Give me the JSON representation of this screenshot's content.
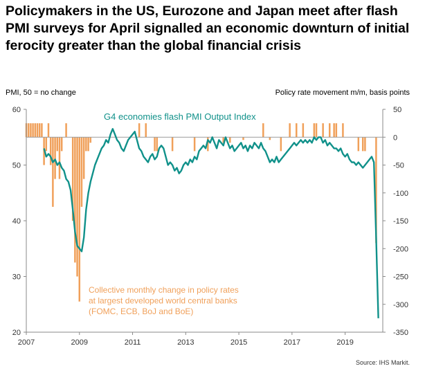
{
  "title": "Policymakers in the US, Eurozone and Japan meet after flash PMI surveys for April signalled an economic downturn of initial ferocity greater than the global financial crisis",
  "left_axis_label": "PMI, 50 = no change",
  "right_axis_label": "Policy rate movement m/m, basis points",
  "source": "Source: IHS Markit.",
  "colors": {
    "pmi_line": "#10918a",
    "rate_bars": "#f0a05a"
  },
  "chart_data": {
    "type": "line",
    "x_ticks": [
      "2007",
      "2009",
      "2011",
      "2013",
      "2015",
      "2017",
      "2019"
    ],
    "x_range": [
      "2007-01",
      "2020-06"
    ],
    "y_left": {
      "label": "PMI, 50 = no change",
      "range": [
        20,
        60
      ],
      "ticks": [
        20,
        30,
        40,
        50,
        60
      ]
    },
    "y_right": {
      "label": "Policy rate movement m/m, basis points",
      "range": [
        -350,
        50
      ],
      "ticks": [
        50,
        0,
        -50,
        -100,
        -150,
        -200,
        -250,
        -300,
        -350
      ]
    },
    "series": [
      {
        "name": "G4 economies flash PMI Output Index",
        "axis": "left",
        "type": "line",
        "points": [
          [
            "2007-09",
            53.0
          ],
          [
            "2007-10",
            51.5
          ],
          [
            "2007-11",
            52.0
          ],
          [
            "2007-12",
            51.5
          ],
          [
            "2008-01",
            50.5
          ],
          [
            "2008-02",
            51.0
          ],
          [
            "2008-03",
            50.0
          ],
          [
            "2008-04",
            50.5
          ],
          [
            "2008-05",
            49.5
          ],
          [
            "2008-06",
            49.0
          ],
          [
            "2008-07",
            47.5
          ],
          [
            "2008-08",
            47.0
          ],
          [
            "2008-09",
            45.5
          ],
          [
            "2008-10",
            42.0
          ],
          [
            "2008-11",
            38.0
          ],
          [
            "2008-12",
            35.5
          ],
          [
            "2009-01",
            35.0
          ],
          [
            "2009-02",
            34.5
          ],
          [
            "2009-03",
            37.0
          ],
          [
            "2009-04",
            42.0
          ],
          [
            "2009-05",
            45.0
          ],
          [
            "2009-06",
            47.0
          ],
          [
            "2009-07",
            48.5
          ],
          [
            "2009-08",
            50.0
          ],
          [
            "2009-09",
            51.0
          ],
          [
            "2009-10",
            52.0
          ],
          [
            "2009-11",
            53.0
          ],
          [
            "2009-12",
            53.5
          ],
          [
            "2010-01",
            54.5
          ],
          [
            "2010-02",
            54.0
          ],
          [
            "2010-03",
            55.5
          ],
          [
            "2010-04",
            56.5
          ],
          [
            "2010-05",
            55.5
          ],
          [
            "2010-06",
            54.5
          ],
          [
            "2010-07",
            54.0
          ],
          [
            "2010-08",
            53.0
          ],
          [
            "2010-09",
            52.5
          ],
          [
            "2010-10",
            53.5
          ],
          [
            "2010-11",
            54.5
          ],
          [
            "2010-12",
            55.0
          ],
          [
            "2011-01",
            55.5
          ],
          [
            "2011-02",
            56.0
          ],
          [
            "2011-03",
            54.5
          ],
          [
            "2011-04",
            53.0
          ],
          [
            "2011-05",
            52.5
          ],
          [
            "2011-06",
            51.5
          ],
          [
            "2011-07",
            51.0
          ],
          [
            "2011-08",
            50.5
          ],
          [
            "2011-09",
            51.5
          ],
          [
            "2011-10",
            52.0
          ],
          [
            "2011-11",
            51.0
          ],
          [
            "2011-12",
            51.5
          ],
          [
            "2012-01",
            53.0
          ],
          [
            "2012-02",
            53.5
          ],
          [
            "2012-03",
            53.0
          ],
          [
            "2012-04",
            51.5
          ],
          [
            "2012-05",
            50.0
          ],
          [
            "2012-06",
            50.5
          ],
          [
            "2012-07",
            50.0
          ],
          [
            "2012-08",
            49.0
          ],
          [
            "2012-09",
            49.5
          ],
          [
            "2012-10",
            48.5
          ],
          [
            "2012-11",
            49.0
          ],
          [
            "2012-12",
            50.0
          ],
          [
            "2013-01",
            50.5
          ],
          [
            "2013-02",
            50.0
          ],
          [
            "2013-03",
            51.0
          ],
          [
            "2013-04",
            50.5
          ],
          [
            "2013-05",
            51.5
          ],
          [
            "2013-06",
            51.0
          ],
          [
            "2013-07",
            52.5
          ],
          [
            "2013-08",
            53.0
          ],
          [
            "2013-09",
            53.5
          ],
          [
            "2013-10",
            53.0
          ],
          [
            "2013-11",
            54.5
          ],
          [
            "2013-12",
            54.0
          ],
          [
            "2014-01",
            55.0
          ],
          [
            "2014-02",
            54.0
          ],
          [
            "2014-03",
            53.0
          ],
          [
            "2014-04",
            54.5
          ],
          [
            "2014-05",
            54.0
          ],
          [
            "2014-06",
            53.5
          ],
          [
            "2014-07",
            55.0
          ],
          [
            "2014-08",
            54.0
          ],
          [
            "2014-09",
            53.0
          ],
          [
            "2014-10",
            53.5
          ],
          [
            "2014-11",
            52.5
          ],
          [
            "2014-12",
            53.0
          ],
          [
            "2015-01",
            53.5
          ],
          [
            "2015-02",
            54.0
          ],
          [
            "2015-03",
            53.0
          ],
          [
            "2015-04",
            53.5
          ],
          [
            "2015-05",
            52.5
          ],
          [
            "2015-06",
            53.5
          ],
          [
            "2015-07",
            53.0
          ],
          [
            "2015-08",
            54.0
          ],
          [
            "2015-09",
            53.5
          ],
          [
            "2015-10",
            53.0
          ],
          [
            "2015-11",
            54.0
          ],
          [
            "2015-12",
            53.0
          ],
          [
            "2016-01",
            52.5
          ],
          [
            "2016-02",
            51.5
          ],
          [
            "2016-03",
            50.5
          ],
          [
            "2016-04",
            51.0
          ],
          [
            "2016-05",
            50.5
          ],
          [
            "2016-06",
            51.5
          ],
          [
            "2016-07",
            50.5
          ],
          [
            "2016-08",
            51.0
          ],
          [
            "2016-09",
            51.5
          ],
          [
            "2016-10",
            52.0
          ],
          [
            "2016-11",
            52.5
          ],
          [
            "2016-12",
            53.0
          ],
          [
            "2017-01",
            53.5
          ],
          [
            "2017-02",
            54.0
          ],
          [
            "2017-03",
            53.5
          ],
          [
            "2017-04",
            54.0
          ],
          [
            "2017-05",
            54.5
          ],
          [
            "2017-06",
            54.0
          ],
          [
            "2017-07",
            54.5
          ],
          [
            "2017-08",
            54.0
          ],
          [
            "2017-09",
            54.5
          ],
          [
            "2017-10",
            54.0
          ],
          [
            "2017-11",
            55.0
          ],
          [
            "2017-12",
            54.5
          ],
          [
            "2018-01",
            55.0
          ],
          [
            "2018-02",
            55.0
          ],
          [
            "2018-03",
            54.0
          ],
          [
            "2018-04",
            54.5
          ],
          [
            "2018-05",
            53.5
          ],
          [
            "2018-06",
            54.0
          ],
          [
            "2018-07",
            53.5
          ],
          [
            "2018-08",
            53.0
          ],
          [
            "2018-09",
            53.0
          ],
          [
            "2018-10",
            52.5
          ],
          [
            "2018-11",
            53.0
          ],
          [
            "2018-12",
            52.0
          ],
          [
            "2019-01",
            51.5
          ],
          [
            "2019-02",
            52.0
          ],
          [
            "2019-03",
            51.0
          ],
          [
            "2019-04",
            50.5
          ],
          [
            "2019-05",
            50.5
          ],
          [
            "2019-06",
            50.0
          ],
          [
            "2019-07",
            50.5
          ],
          [
            "2019-08",
            50.0
          ],
          [
            "2019-09",
            49.5
          ],
          [
            "2019-10",
            50.0
          ],
          [
            "2019-11",
            50.5
          ],
          [
            "2019-12",
            51.0
          ],
          [
            "2020-01",
            51.5
          ],
          [
            "2020-02",
            50.5
          ],
          [
            "2020-03",
            37.0
          ],
          [
            "2020-04",
            22.5
          ]
        ]
      },
      {
        "name": "Collective monthly change in policy rates at largest developed world central banks (FOMC, ECB, BoJ and BoE)",
        "axis": "right",
        "type": "bar",
        "points": [
          [
            "2007-01",
            25
          ],
          [
            "2007-02",
            25
          ],
          [
            "2007-03",
            25
          ],
          [
            "2007-04",
            25
          ],
          [
            "2007-05",
            25
          ],
          [
            "2007-06",
            25
          ],
          [
            "2007-07",
            25
          ],
          [
            "2007-08",
            25
          ],
          [
            "2007-09",
            -50
          ],
          [
            "2007-10",
            -25
          ],
          [
            "2007-11",
            25
          ],
          [
            "2007-12",
            -50
          ],
          [
            "2008-01",
            -125
          ],
          [
            "2008-02",
            -75
          ],
          [
            "2008-03",
            -25
          ],
          [
            "2008-04",
            -75
          ],
          [
            "2008-05",
            -25
          ],
          [
            "2008-07",
            25
          ],
          [
            "2008-10",
            -150
          ],
          [
            "2008-11",
            -225
          ],
          [
            "2008-12",
            -250
          ],
          [
            "2009-01",
            -295
          ],
          [
            "2009-02",
            -125
          ],
          [
            "2009-03",
            -75
          ],
          [
            "2009-04",
            -25
          ],
          [
            "2009-05",
            -25
          ],
          [
            "2009-06",
            -10
          ],
          [
            "2011-04",
            25
          ],
          [
            "2011-07",
            25
          ],
          [
            "2011-11",
            -25
          ],
          [
            "2011-12",
            -25
          ],
          [
            "2012-07",
            -25
          ],
          [
            "2013-05",
            -25
          ],
          [
            "2013-11",
            -25
          ],
          [
            "2014-06",
            -10
          ],
          [
            "2014-09",
            -10
          ],
          [
            "2015-03",
            -5
          ],
          [
            "2015-12",
            25
          ],
          [
            "2016-03",
            -5
          ],
          [
            "2016-08",
            -25
          ],
          [
            "2016-12",
            25
          ],
          [
            "2017-03",
            25
          ],
          [
            "2017-06",
            25
          ],
          [
            "2017-11",
            25
          ],
          [
            "2017-12",
            25
          ],
          [
            "2018-03",
            25
          ],
          [
            "2018-06",
            25
          ],
          [
            "2018-08",
            25
          ],
          [
            "2018-09",
            25
          ],
          [
            "2018-12",
            25
          ],
          [
            "2019-07",
            -25
          ],
          [
            "2019-09",
            -25
          ],
          [
            "2019-10",
            -25
          ],
          [
            "2020-03",
            -190
          ]
        ]
      }
    ],
    "annotations": [
      {
        "text": "G4 economies flash PMI Output Index",
        "series": 0
      },
      {
        "text_lines": [
          "Collective monthly change in policy rates",
          "at largest developed world central banks",
          "(FOMC, ECB, BoJ and BoE)"
        ],
        "series": 1
      }
    ],
    "grid": false
  }
}
